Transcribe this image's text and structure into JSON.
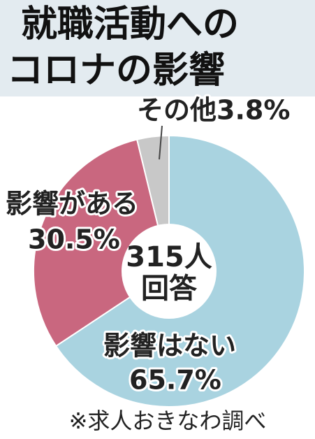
{
  "chart_data": {
    "type": "donut",
    "title": [
      "就職活動への",
      "コロナの影響"
    ],
    "categories": [
      "影響はない",
      "影響がある",
      "その他"
    ],
    "values": [
      65.7,
      30.5,
      3.8
    ],
    "value_labels": [
      "65.7%",
      "30.5%",
      "3.8%"
    ],
    "colors": [
      "#a9d3e0",
      "#c9677f",
      "#c8c8c8"
    ],
    "center_text": [
      "315人",
      "回答"
    ],
    "source": "※求人おきなわ調べ"
  }
}
